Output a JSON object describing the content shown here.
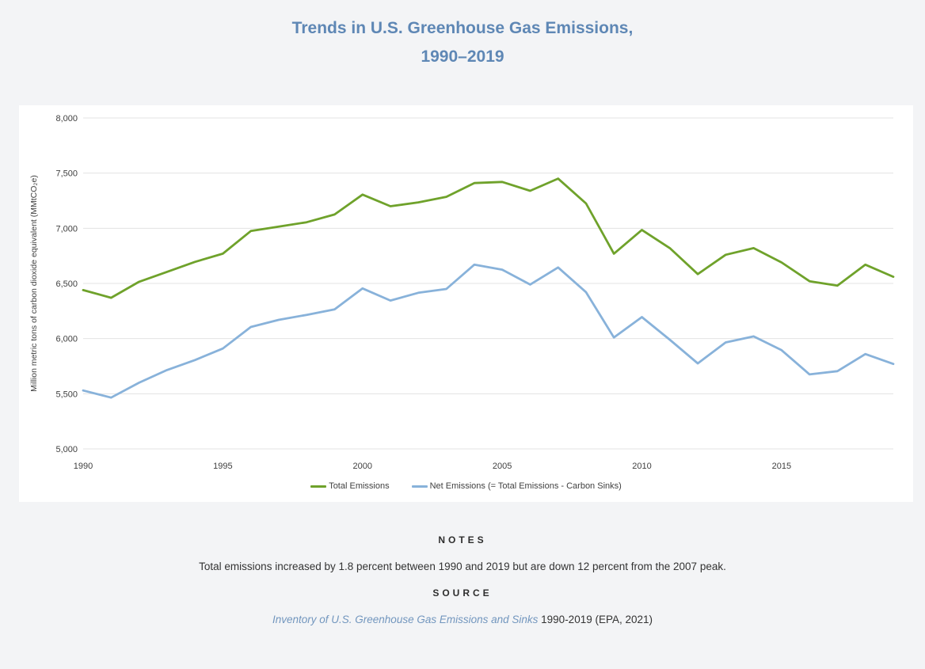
{
  "title": {
    "line1": "Trends in U.S. Greenhouse Gas Emissions,",
    "line2": "1990–2019",
    "color": "#5e87b5"
  },
  "chart_data": {
    "type": "line",
    "title": "Trends in U.S. Greenhouse Gas Emissions, 1990–2019",
    "xlabel": "",
    "ylabel": "Million metric tons of carbon dioxide equivalent (MMtCO₂e)",
    "ylim": [
      5000,
      8000
    ],
    "y_tick_labels": [
      "5,000",
      "5,500",
      "6,000",
      "6,500",
      "7,000",
      "7,500",
      "8,000"
    ],
    "x_tick_labels": [
      "1990",
      "1995",
      "2000",
      "2005",
      "2010",
      "2015"
    ],
    "grid": "horizontal-only",
    "legend_position": "bottom-center",
    "x": [
      1990,
      1991,
      1992,
      1993,
      1994,
      1995,
      1996,
      1997,
      1998,
      1999,
      2000,
      2001,
      2002,
      2003,
      2004,
      2005,
      2006,
      2007,
      2008,
      2009,
      2010,
      2011,
      2012,
      2013,
      2014,
      2015,
      2016,
      2017,
      2018,
      2019
    ],
    "series": [
      {
        "name": "Total Emissions",
        "color": "#6fa22b",
        "values": [
          6440,
          6370,
          6515,
          6605,
          6695,
          6770,
          6975,
          7015,
          7055,
          7125,
          7305,
          7200,
          7235,
          7285,
          7410,
          7420,
          7340,
          7450,
          7225,
          6770,
          6985,
          6820,
          6585,
          6760,
          6820,
          6690,
          6520,
          6480,
          6670,
          6560
        ]
      },
      {
        "name": "Net Emissions (= Total Emissions - Carbon Sinks)",
        "color": "#88b2da",
        "values": [
          5530,
          5465,
          5600,
          5715,
          5805,
          5910,
          6105,
          6170,
          6215,
          6265,
          6455,
          6345,
          6415,
          6450,
          6670,
          6625,
          6490,
          6645,
          6420,
          6010,
          6195,
          5990,
          5775,
          5965,
          6020,
          5895,
          5675,
          5705,
          5860,
          5770
        ]
      }
    ]
  },
  "notes": {
    "heading": "NOTES",
    "text": "Total emissions increased by 1.8 percent between 1990 and 2019 but are down 12 percent from the 2007 peak."
  },
  "source": {
    "heading": "SOURCE",
    "link_text": "Inventory of U.S. Greenhouse Gas Emissions and Sinks",
    "rest_text": " 1990-2019 (EPA, 2021)"
  }
}
